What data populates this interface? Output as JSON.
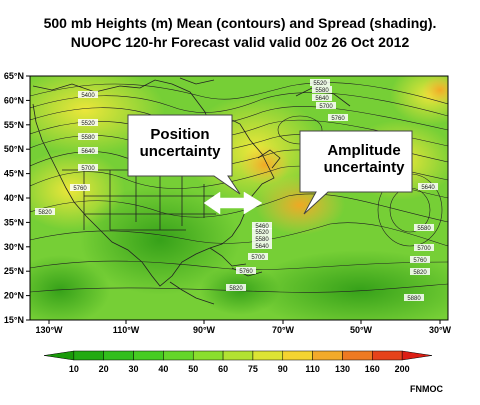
{
  "title": {
    "line1": "500 mb Heights (m) Mean (contours) and Spread (shading).",
    "line2": "NUOPC 120-hr Forecast valid valid 00z 26 Oct 2012"
  },
  "map": {
    "lat_labels": [
      "65°N",
      "60°N",
      "55°N",
      "50°N",
      "45°N",
      "40°N",
      "35°N",
      "30°N",
      "25°N",
      "20°N",
      "15°N"
    ],
    "lon_labels": [
      "130°W",
      "110°W",
      "90°W",
      "70°W",
      "50°W",
      "30°W"
    ],
    "contour_labels": [
      "5400",
      "5520",
      "5580",
      "5640",
      "5700",
      "5760",
      "5820",
      "5520",
      "5580",
      "5640",
      "5700",
      "5760",
      "5460",
      "5520",
      "5580",
      "5640",
      "5700",
      "5760",
      "5820",
      "5640",
      "5580",
      "5700",
      "5760",
      "5820",
      "5880"
    ],
    "colors": {
      "ocean_green": "#7fd23a",
      "land_green": "#46b81a",
      "yellow": "#f2e83a",
      "orange": "#f5a623"
    }
  },
  "annotations": {
    "position": "Position\nuncertainty",
    "amplitude": "Amplitude\nuncertainty"
  },
  "colorbar": {
    "ticks": [
      "10",
      "20",
      "30",
      "40",
      "50",
      "60",
      "75",
      "90",
      "110",
      "130",
      "160",
      "200"
    ],
    "colors": [
      "#1a9a0a",
      "#22aa12",
      "#32be1c",
      "#46cc22",
      "#64d62a",
      "#8ade2e",
      "#b2e232",
      "#dce434",
      "#f4d430",
      "#f2aa2a",
      "#ee7a22",
      "#e6421a",
      "#dc1e14"
    ]
  },
  "credit": "FNMOC"
}
